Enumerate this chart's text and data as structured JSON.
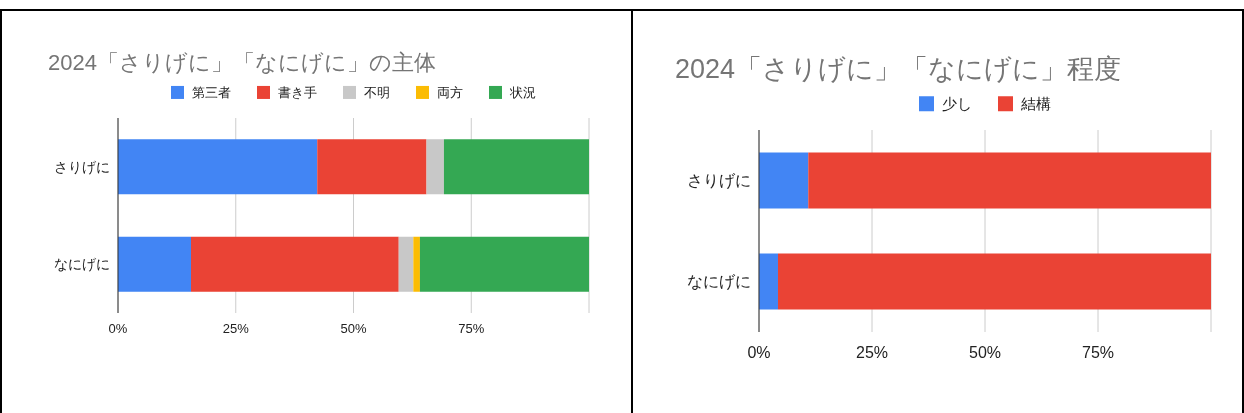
{
  "chart_data": [
    {
      "type": "bar",
      "title": "2024「さりげに」「なにげに」の主体",
      "orientation": "horizontal",
      "stacked": true,
      "categories": [
        "さりげに",
        "なにげに"
      ],
      "series": [
        {
          "name": "第三者",
          "color": "#4285f4",
          "values": [
            42.3,
            15.5
          ]
        },
        {
          "name": "書き手",
          "color": "#ea4335",
          "values": [
            23.2,
            44.1
          ]
        },
        {
          "name": "不明",
          "color": "#c8c8c8",
          "values": [
            3.7,
            3.1
          ]
        },
        {
          "name": "両方",
          "color": "#fbbc04",
          "values": [
            0,
            1.4
          ]
        },
        {
          "name": "状況",
          "color": "#34a853",
          "values": [
            30.8,
            35.9
          ]
        }
      ],
      "xlim": [
        0,
        100
      ],
      "xticks": [
        {
          "value": 0,
          "label": "0%"
        },
        {
          "value": 25,
          "label": "25%"
        },
        {
          "value": 50,
          "label": "50%"
        },
        {
          "value": 75,
          "label": "75%"
        },
        {
          "value": 100,
          "label": null
        }
      ],
      "grid": "x",
      "legend": "top"
    },
    {
      "type": "bar",
      "title": "2024「さりげに」「なにげに」程度",
      "orientation": "horizontal",
      "stacked": true,
      "categories": [
        "さりげに",
        "なにげに"
      ],
      "series": [
        {
          "name": "少し",
          "color": "#4285f4",
          "values": [
            10.9,
            4.2
          ]
        },
        {
          "name": "結構",
          "color": "#ea4335",
          "values": [
            89.1,
            95.8
          ]
        }
      ],
      "xlim": [
        0,
        100
      ],
      "xticks": [
        {
          "value": 0,
          "label": "0%"
        },
        {
          "value": 25,
          "label": "25%"
        },
        {
          "value": 50,
          "label": "50%"
        },
        {
          "value": 75,
          "label": "75%"
        },
        {
          "value": 100,
          "label": null
        }
      ],
      "grid": "x",
      "legend": "top"
    }
  ]
}
